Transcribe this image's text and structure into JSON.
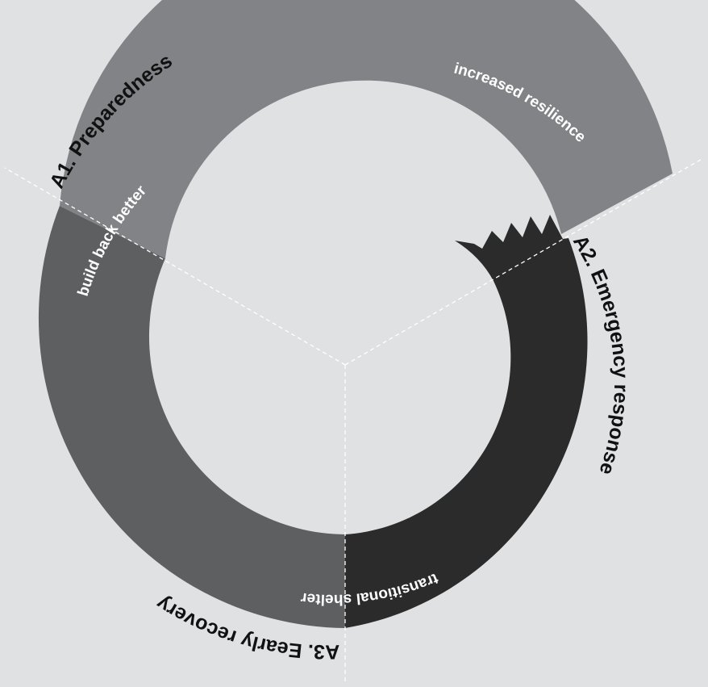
{
  "diagram": {
    "phases": [
      {
        "id": "preparedness",
        "label": "A1. Preparedness",
        "color": "#828386"
      },
      {
        "id": "emergency",
        "label": "A2. Emergency response",
        "color": "#2b2b2b"
      },
      {
        "id": "recovery",
        "label": "A3. Eearly recovery",
        "color": "#5e5f61"
      }
    ],
    "transitions": [
      {
        "id": "increased-resilience",
        "label": "increased resilience"
      },
      {
        "id": "build-back-better",
        "label": "build back better"
      },
      {
        "id": "transitional-shelter",
        "label": "transitional shelter"
      }
    ],
    "colors": {
      "background": "#e0e1e3",
      "divider": "#ffffff"
    }
  }
}
